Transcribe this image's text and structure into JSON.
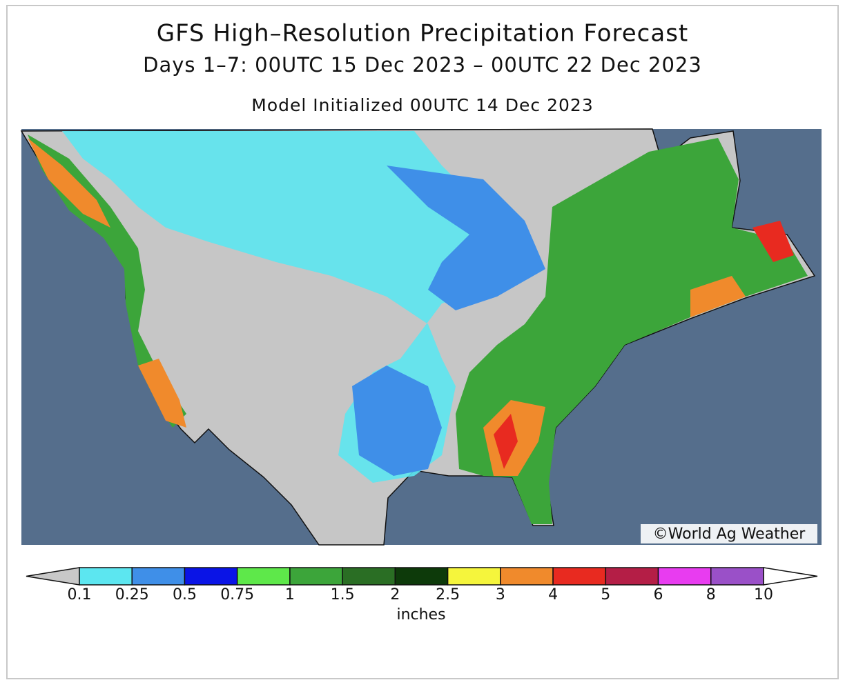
{
  "header": {
    "title": "GFS High–Resolution Precipitation Forecast",
    "subtitle": "Days 1–7: 00UTC 15 Dec 2023 – 00UTC 22 Dec 2023",
    "initialized": "Model Initialized 00UTC 14 Dec 2023"
  },
  "map": {
    "credit": "©World Ag Weather"
  },
  "legend": {
    "levels": [
      0.1,
      0.25,
      0.5,
      0.75,
      1,
      1.5,
      2,
      2.5,
      3,
      4,
      5,
      6,
      8,
      10
    ],
    "colors": [
      "#5ce6f0",
      "#3f8fe8",
      "#0a14e6",
      "#5ee84a",
      "#3ca53a",
      "#2a6e24",
      "#0d3a0a",
      "#f5f53c",
      "#f08a2c",
      "#e82a20",
      "#b41e46",
      "#e83cf0",
      "#9a50c8"
    ],
    "below_color": "#c8c8c8",
    "above_color": "#ffffff",
    "unit": "inches"
  }
}
